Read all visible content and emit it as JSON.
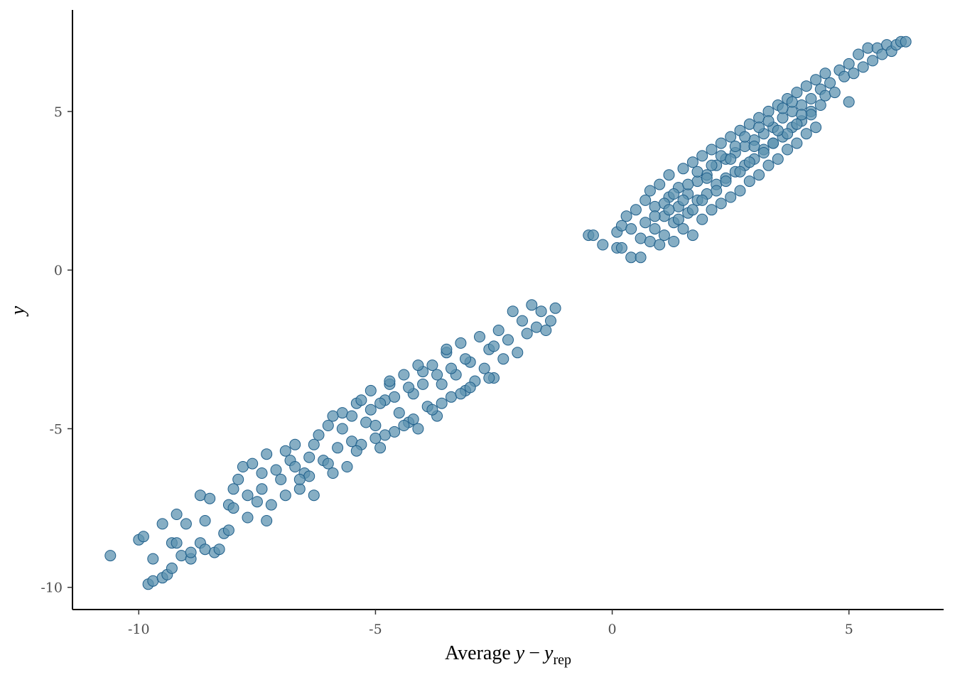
{
  "chart_data": {
    "type": "scatter",
    "xlabel": {
      "prefix": "Average ",
      "var": "y",
      "minus": "−",
      "var2": "y",
      "sub": "rep"
    },
    "ylabel": "y",
    "xlim": [
      -11.4,
      7.0
    ],
    "ylim": [
      -10.7,
      8.2
    ],
    "xticks": [
      -10,
      -5,
      0,
      5
    ],
    "yticks": [
      -10,
      -5,
      0,
      5
    ],
    "xtick_labels": [
      "-10",
      "-5",
      "0",
      "5"
    ],
    "ytick_labels": [
      "-10",
      "-5",
      "0",
      "5"
    ],
    "grid": false,
    "legend": "none",
    "point_fill": "#5e93b0",
    "point_stroke": "#1f5f8b",
    "series": [
      {
        "values": [
          [
            -10.6,
            -9.0
          ],
          [
            -10.0,
            -8.5
          ],
          [
            -9.9,
            -8.4
          ],
          [
            -9.8,
            -9.9
          ],
          [
            -9.7,
            -9.8
          ],
          [
            -9.7,
            -9.1
          ],
          [
            -9.5,
            -8.0
          ],
          [
            -9.5,
            -9.7
          ],
          [
            -9.4,
            -9.6
          ],
          [
            -9.3,
            -9.4
          ],
          [
            -9.3,
            -8.6
          ],
          [
            -9.2,
            -8.6
          ],
          [
            -9.2,
            -7.7
          ],
          [
            -9.1,
            -9.0
          ],
          [
            -9.0,
            -8.0
          ],
          [
            -8.9,
            -9.1
          ],
          [
            -8.9,
            -8.9
          ],
          [
            -8.7,
            -7.1
          ],
          [
            -8.7,
            -8.6
          ],
          [
            -8.6,
            -8.8
          ],
          [
            -8.6,
            -7.9
          ],
          [
            -8.5,
            -7.2
          ],
          [
            -8.4,
            -8.9
          ],
          [
            -8.3,
            -8.8
          ],
          [
            -8.2,
            -8.3
          ],
          [
            -8.1,
            -7.4
          ],
          [
            -8.1,
            -8.2
          ],
          [
            -8.0,
            -6.9
          ],
          [
            -8.0,
            -7.5
          ],
          [
            -7.9,
            -6.6
          ],
          [
            -7.8,
            -6.2
          ],
          [
            -7.7,
            -7.1
          ],
          [
            -7.7,
            -7.8
          ],
          [
            -7.6,
            -6.1
          ],
          [
            -7.5,
            -7.3
          ],
          [
            -7.4,
            -6.9
          ],
          [
            -7.3,
            -7.9
          ],
          [
            -7.3,
            -5.8
          ],
          [
            -7.2,
            -7.4
          ],
          [
            -7.1,
            -6.3
          ],
          [
            -7.0,
            -6.6
          ],
          [
            -6.9,
            -7.1
          ],
          [
            -6.8,
            -6.0
          ],
          [
            -6.7,
            -5.5
          ],
          [
            -6.6,
            -6.9
          ],
          [
            -6.5,
            -6.4
          ],
          [
            -6.4,
            -6.5
          ],
          [
            -6.4,
            -5.9
          ],
          [
            -6.3,
            -7.1
          ],
          [
            -6.2,
            -5.2
          ],
          [
            -6.1,
            -6.0
          ],
          [
            -6.0,
            -4.9
          ],
          [
            -5.9,
            -6.4
          ],
          [
            -5.8,
            -5.6
          ],
          [
            -5.7,
            -4.5
          ],
          [
            -5.6,
            -6.2
          ],
          [
            -5.5,
            -5.4
          ],
          [
            -5.4,
            -4.2
          ],
          [
            -5.3,
            -5.5
          ],
          [
            -5.2,
            -4.8
          ],
          [
            -5.1,
            -3.8
          ],
          [
            -5.0,
            -4.9
          ],
          [
            -4.9,
            -5.6
          ],
          [
            -4.8,
            -4.1
          ],
          [
            -4.7,
            -3.6
          ],
          [
            -4.6,
            -5.1
          ],
          [
            -4.5,
            -4.5
          ],
          [
            -4.4,
            -3.3
          ],
          [
            -4.3,
            -4.8
          ],
          [
            -4.2,
            -3.9
          ],
          [
            -4.1,
            -5.0
          ],
          [
            -4.0,
            -3.2
          ],
          [
            -3.9,
            -4.3
          ],
          [
            -3.8,
            -3.0
          ],
          [
            -3.7,
            -4.6
          ],
          [
            -3.6,
            -3.6
          ],
          [
            -3.5,
            -2.6
          ],
          [
            -3.4,
            -4.0
          ],
          [
            -3.3,
            -3.3
          ],
          [
            -3.2,
            -2.3
          ],
          [
            -3.1,
            -3.8
          ],
          [
            -3.0,
            -2.9
          ],
          [
            -2.9,
            -3.5
          ],
          [
            -2.8,
            -2.1
          ],
          [
            -2.7,
            -3.1
          ],
          [
            -2.6,
            -2.5
          ],
          [
            -2.5,
            -3.4
          ],
          [
            -2.4,
            -1.9
          ],
          [
            -2.3,
            -2.8
          ],
          [
            -2.2,
            -2.2
          ],
          [
            -2.1,
            -1.3
          ],
          [
            -2.0,
            -2.6
          ],
          [
            -1.9,
            -1.6
          ],
          [
            -1.8,
            -2.0
          ],
          [
            -1.7,
            -1.1
          ],
          [
            -1.6,
            -1.8
          ],
          [
            -1.5,
            -1.3
          ],
          [
            -1.4,
            -1.9
          ],
          [
            -1.3,
            -1.6
          ],
          [
            -1.2,
            -1.2
          ],
          [
            -6.9,
            -5.7
          ],
          [
            -6.3,
            -5.5
          ],
          [
            -5.7,
            -5.0
          ],
          [
            -5.1,
            -4.4
          ],
          [
            -4.6,
            -4.0
          ],
          [
            -4.0,
            -3.6
          ],
          [
            -3.4,
            -3.1
          ],
          [
            -6.6,
            -6.6
          ],
          [
            -6.0,
            -6.1
          ],
          [
            -5.4,
            -5.7
          ],
          [
            -4.8,
            -5.2
          ],
          [
            -4.2,
            -4.7
          ],
          [
            -3.6,
            -4.2
          ],
          [
            -3.0,
            -3.7
          ],
          [
            -5.9,
            -4.6
          ],
          [
            -5.3,
            -4.1
          ],
          [
            -4.7,
            -3.5
          ],
          [
            -4.1,
            -3.0
          ],
          [
            -3.5,
            -2.5
          ],
          [
            -5.0,
            -5.3
          ],
          [
            -4.4,
            -4.9
          ],
          [
            -3.8,
            -4.4
          ],
          [
            -3.2,
            -3.9
          ],
          [
            -2.6,
            -3.4
          ],
          [
            -7.4,
            -6.4
          ],
          [
            -6.7,
            -6.2
          ],
          [
            -5.5,
            -4.6
          ],
          [
            -4.9,
            -4.2
          ],
          [
            -4.3,
            -3.7
          ],
          [
            -3.7,
            -3.3
          ],
          [
            -3.1,
            -2.8
          ],
          [
            -2.5,
            -2.4
          ]
        ]
      },
      {
        "values": [
          [
            -0.5,
            1.1
          ],
          [
            -0.4,
            1.1
          ],
          [
            -0.2,
            0.8
          ],
          [
            0.1,
            0.7
          ],
          [
            0.1,
            1.2
          ],
          [
            0.2,
            1.4
          ],
          [
            0.2,
            0.7
          ],
          [
            0.3,
            1.7
          ],
          [
            0.4,
            0.4
          ],
          [
            0.4,
            1.3
          ],
          [
            0.5,
            1.9
          ],
          [
            0.6,
            0.4
          ],
          [
            0.6,
            1.0
          ],
          [
            0.7,
            2.2
          ],
          [
            0.7,
            1.5
          ],
          [
            0.8,
            0.9
          ],
          [
            0.8,
            2.5
          ],
          [
            0.9,
            1.3
          ],
          [
            0.9,
            2.0
          ],
          [
            1.0,
            0.8
          ],
          [
            1.0,
            2.7
          ],
          [
            1.1,
            1.7
          ],
          [
            1.1,
            1.1
          ],
          [
            1.2,
            2.3
          ],
          [
            1.2,
            3.0
          ],
          [
            1.3,
            1.5
          ],
          [
            1.3,
            0.9
          ],
          [
            1.4,
            2.6
          ],
          [
            1.4,
            2.0
          ],
          [
            1.5,
            3.2
          ],
          [
            1.5,
            1.3
          ],
          [
            1.6,
            2.4
          ],
          [
            1.6,
            1.8
          ],
          [
            1.7,
            3.4
          ],
          [
            1.7,
            1.1
          ],
          [
            1.8,
            2.8
          ],
          [
            1.8,
            2.2
          ],
          [
            1.9,
            3.6
          ],
          [
            1.9,
            1.6
          ],
          [
            2.0,
            3.0
          ],
          [
            2.0,
            2.4
          ],
          [
            2.1,
            1.9
          ],
          [
            2.1,
            3.8
          ],
          [
            2.2,
            2.7
          ],
          [
            2.2,
            3.3
          ],
          [
            2.3,
            2.1
          ],
          [
            2.3,
            4.0
          ],
          [
            2.4,
            2.9
          ],
          [
            2.4,
            3.5
          ],
          [
            2.5,
            2.3
          ],
          [
            2.5,
            4.2
          ],
          [
            2.6,
            3.1
          ],
          [
            2.6,
            3.7
          ],
          [
            2.7,
            2.5
          ],
          [
            2.7,
            4.4
          ],
          [
            2.8,
            3.3
          ],
          [
            2.8,
            3.9
          ],
          [
            2.9,
            2.8
          ],
          [
            2.9,
            4.6
          ],
          [
            3.0,
            3.5
          ],
          [
            3.0,
            4.1
          ],
          [
            3.1,
            3.0
          ],
          [
            3.1,
            4.8
          ],
          [
            3.2,
            3.8
          ],
          [
            3.2,
            4.3
          ],
          [
            3.3,
            3.3
          ],
          [
            3.3,
            5.0
          ],
          [
            3.4,
            4.0
          ],
          [
            3.4,
            4.5
          ],
          [
            3.5,
            3.5
          ],
          [
            3.5,
            5.2
          ],
          [
            3.6,
            4.2
          ],
          [
            3.6,
            4.8
          ],
          [
            3.7,
            3.8
          ],
          [
            3.7,
            5.4
          ],
          [
            3.8,
            4.5
          ],
          [
            3.8,
            5.0
          ],
          [
            3.9,
            4.0
          ],
          [
            3.9,
            5.6
          ],
          [
            4.0,
            4.7
          ],
          [
            4.0,
            5.2
          ],
          [
            4.1,
            4.3
          ],
          [
            4.1,
            5.8
          ],
          [
            4.2,
            5.0
          ],
          [
            4.2,
            5.4
          ],
          [
            4.3,
            4.5
          ],
          [
            4.3,
            6.0
          ],
          [
            4.4,
            5.2
          ],
          [
            4.4,
            5.7
          ],
          [
            4.5,
            5.5
          ],
          [
            4.5,
            6.2
          ],
          [
            4.6,
            5.9
          ],
          [
            4.7,
            5.6
          ],
          [
            4.8,
            6.3
          ],
          [
            4.9,
            6.1
          ],
          [
            5.0,
            5.3
          ],
          [
            5.0,
            6.5
          ],
          [
            5.1,
            6.2
          ],
          [
            5.2,
            6.8
          ],
          [
            5.3,
            6.4
          ],
          [
            5.4,
            7.0
          ],
          [
            5.5,
            6.6
          ],
          [
            5.6,
            7.0
          ],
          [
            5.7,
            6.8
          ],
          [
            5.8,
            7.1
          ],
          [
            5.9,
            6.9
          ],
          [
            6.0,
            7.1
          ],
          [
            6.1,
            7.2
          ],
          [
            6.2,
            7.2
          ],
          [
            1.1,
            2.1
          ],
          [
            1.3,
            2.4
          ],
          [
            1.6,
            2.7
          ],
          [
            1.8,
            3.1
          ],
          [
            2.1,
            3.3
          ],
          [
            2.3,
            3.6
          ],
          [
            2.6,
            3.9
          ],
          [
            2.8,
            4.2
          ],
          [
            3.1,
            4.5
          ],
          [
            3.3,
            4.7
          ],
          [
            3.6,
            5.1
          ],
          [
            3.8,
            5.3
          ],
          [
            1.4,
            1.6
          ],
          [
            1.7,
            1.9
          ],
          [
            1.9,
            2.2
          ],
          [
            2.2,
            2.5
          ],
          [
            2.4,
            2.8
          ],
          [
            2.7,
            3.1
          ],
          [
            2.9,
            3.4
          ],
          [
            3.2,
            3.7
          ],
          [
            3.4,
            4.0
          ],
          [
            3.7,
            4.3
          ],
          [
            3.9,
            4.6
          ],
          [
            4.2,
            4.9
          ],
          [
            0.9,
            1.7
          ],
          [
            1.2,
            1.9
          ],
          [
            1.5,
            2.2
          ],
          [
            2.0,
            2.9
          ],
          [
            2.5,
            3.5
          ],
          [
            3.0,
            3.9
          ],
          [
            3.5,
            4.4
          ],
          [
            4.0,
            4.9
          ]
        ]
      }
    ]
  }
}
